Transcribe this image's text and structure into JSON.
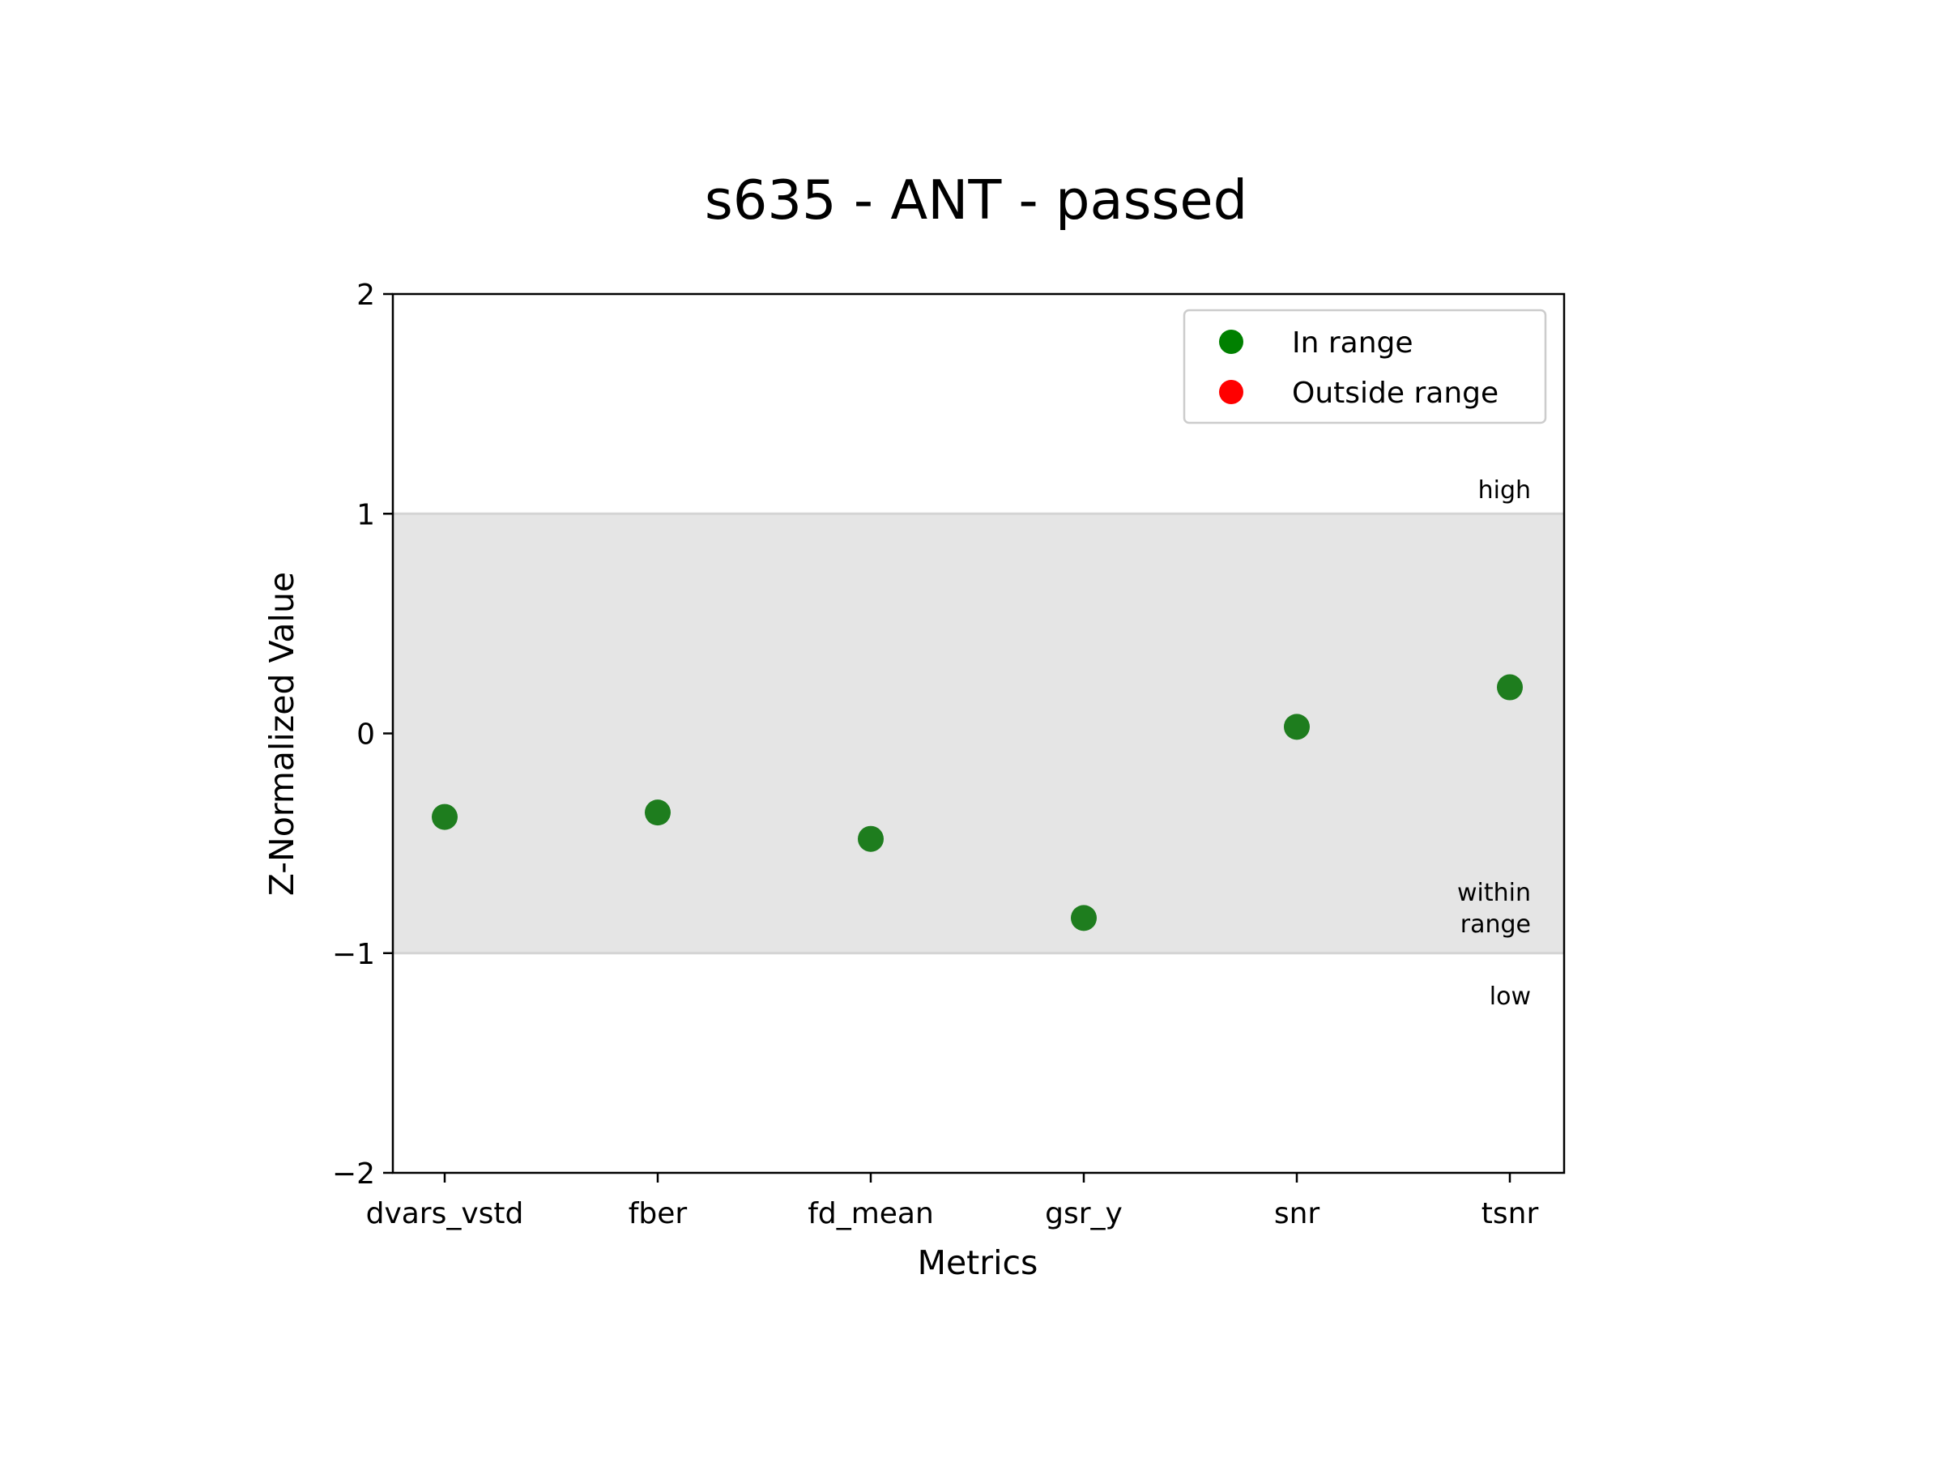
{
  "chart_data": {
    "type": "scatter",
    "title": "s635 - ANT - passed",
    "xlabel": "Metrics",
    "ylabel": "Z-Normalized Value",
    "categories": [
      "dvars_vstd",
      "fber",
      "fd_mean",
      "gsr_y",
      "snr",
      "tsnr"
    ],
    "values": [
      -0.38,
      -0.36,
      -0.48,
      -0.84,
      0.03,
      0.21
    ],
    "ylim": [
      -2,
      2
    ],
    "yticks": [
      2,
      1,
      0,
      -1,
      -2
    ],
    "ytick_labels": [
      "2",
      "1",
      "0",
      "−1",
      "−2"
    ],
    "grid": false,
    "range_band": {
      "low": -1,
      "high": 1,
      "color": "#e5e5e5"
    },
    "band_labels": {
      "high": "high",
      "within": [
        "within",
        "range"
      ],
      "low": "low"
    },
    "legend": {
      "placement": "upper-right",
      "items": [
        {
          "label": "In range",
          "color": "#008000"
        },
        {
          "label": "Outside range",
          "color": "#ff0000"
        }
      ]
    },
    "point_color": "#1e7d1e"
  }
}
